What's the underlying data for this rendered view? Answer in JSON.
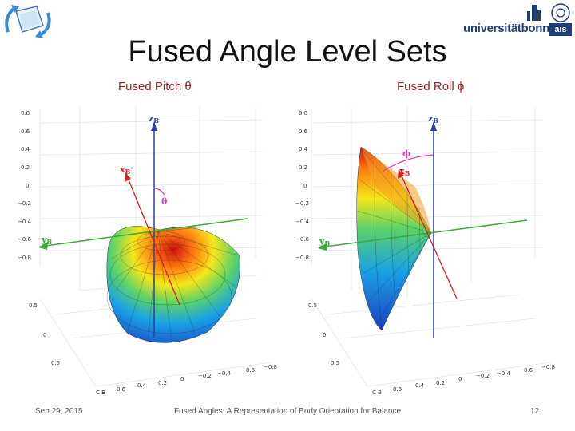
{
  "slide": {
    "title": "Fused Angle Level Sets",
    "date": "Sep 29, 2015",
    "footer_title": "Fused Angles: A Representation of Body Orientation for Balance",
    "page_number": "12"
  },
  "logo": {
    "university": "universitätbonn",
    "group": "ais"
  },
  "plots": {
    "pitch": {
      "label": "Fused Pitch θ",
      "z_label": "z",
      "x_label": "x",
      "y_label": "y",
      "subscript": "B",
      "angle_label": "θ",
      "z_ticks": [
        "0.8",
        "0.6",
        "0.4",
        "0.2",
        "0",
        "−0.2",
        "−0.4",
        "−0.6",
        "−0.8"
      ],
      "left_ticks": [
        "0.5",
        "0",
        "0.5"
      ],
      "bottom_ticks": [
        "C B",
        "0.6",
        "0.4",
        "0.2",
        "0",
        "−0.2",
        "−0.4",
        "0.6",
        "−0.8"
      ]
    },
    "roll": {
      "label": "Fused Roll ϕ",
      "z_label": "z",
      "x_label": "x",
      "y_label": "y",
      "subscript": "B",
      "angle_label": "ϕ",
      "z_ticks": [
        "0.8",
        "0.6",
        "0.4",
        "0.2",
        "0",
        "−0.2",
        "−0.4",
        "−0.6",
        "−0.8"
      ],
      "left_ticks": [
        "0.5",
        "0",
        "0.5"
      ],
      "bottom_ticks": [
        "C B",
        "0.6",
        "0.4",
        "0.2",
        "0",
        "−0.2",
        "−0.4",
        "0.6",
        "−0.8"
      ]
    }
  },
  "colors": {
    "z_axis": "#2a3fa8",
    "x_axis": "#d42020",
    "y_axis": "#3aa83a",
    "angle_arc": "#d040c0"
  }
}
